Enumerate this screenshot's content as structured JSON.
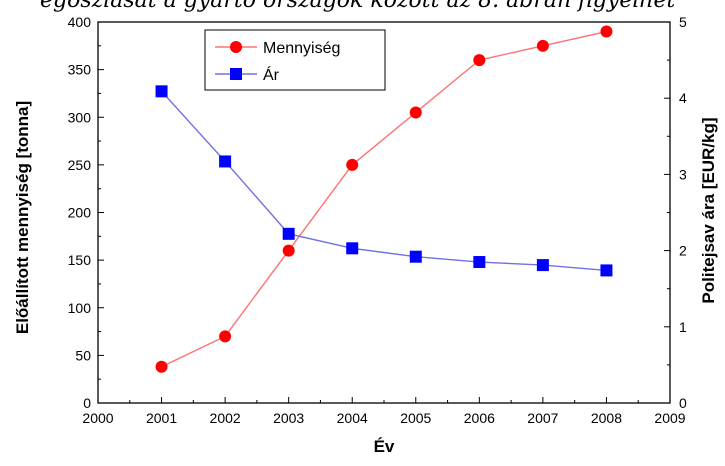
{
  "header": {
    "cut_caption": "egoszlását a gyártó országok között az 8. ábrán figyelhet"
  },
  "chart_data": {
    "type": "line",
    "xlabel": "Év",
    "ylabel_left": "Előállított mennyiség [tonna]",
    "ylabel_right": "Politejsav ára [EUR/kg]",
    "xlim": [
      2000,
      2009
    ],
    "ylim_left": [
      0,
      400
    ],
    "ylim_right": [
      0,
      5
    ],
    "x_ticks": [
      2000,
      2001,
      2002,
      2003,
      2004,
      2005,
      2006,
      2007,
      2008,
      2009
    ],
    "y_left_ticks": [
      0,
      50,
      100,
      150,
      200,
      250,
      300,
      350,
      400
    ],
    "y_right_ticks": [
      0,
      1,
      2,
      3,
      4,
      5
    ],
    "grid": false,
    "legend_position": "top-left",
    "series": [
      {
        "name": "Mennyiség",
        "axis": "left",
        "color": "#ff0000",
        "line_color": "#ff7070",
        "marker": "circle",
        "x": [
          2001,
          2002,
          2003,
          2004,
          2005,
          2006,
          2007,
          2008
        ],
        "values": [
          38,
          70,
          160,
          250,
          305,
          360,
          375,
          390
        ]
      },
      {
        "name": "Ár",
        "axis": "right",
        "color": "#0000ff",
        "line_color": "#7070e0",
        "marker": "square",
        "x": [
          2001,
          2002,
          2003,
          2004,
          2005,
          2006,
          2007,
          2008
        ],
        "values": [
          4.09,
          3.17,
          2.22,
          2.03,
          1.92,
          1.85,
          1.81,
          1.74
        ]
      }
    ]
  }
}
